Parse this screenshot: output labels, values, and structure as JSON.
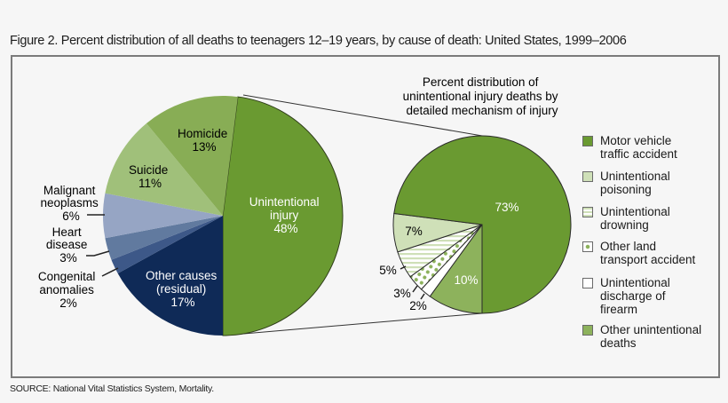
{
  "figure": {
    "title": "Figure 2. Percent distribution of all deaths to teenagers 12–19 years, by cause of death: United States, 1999–2006",
    "source": "SOURCE: National Vital Statistics System, Mortality."
  },
  "main_pie": {
    "slices": [
      {
        "label": "Unintentional injury",
        "pct": "48%",
        "color": "#6a9a31"
      },
      {
        "label": "Other causes (residual)",
        "pct": "17%",
        "color": "#0f2a57"
      },
      {
        "label": "Congenital anomalies",
        "pct": "2%",
        "color": "#3d5888"
      },
      {
        "label": "Heart disease",
        "pct": "3%",
        "color": "#617a9f"
      },
      {
        "label": "Malignant neoplasms",
        "pct": "6%",
        "color": "#96a5c4"
      },
      {
        "label": "Suicide",
        "pct": "11%",
        "color": "#a0c07a"
      },
      {
        "label": "Homicide",
        "pct": "13%",
        "color": "#88ad55"
      }
    ]
  },
  "detail_pie": {
    "title": "Percent distribution of\nunintentional injury deaths by\ndetailed mechanism of injury",
    "title_lines": [
      "Percent distribution of",
      "unintentional injury deaths by",
      "detailed mechanism of injury"
    ],
    "slices": [
      {
        "label": "Motor vehicle traffic accident",
        "pct": "73%",
        "color": "#6a9a31"
      },
      {
        "label": "Unintentional poisoning",
        "pct": "7%",
        "color": "#cfe0b8"
      },
      {
        "label": "Unintentional drowning",
        "pct": "5%",
        "color": "#e4eed6"
      },
      {
        "label": "Other land transport accident",
        "pct": "3%",
        "color": "#f2f6ea"
      },
      {
        "label": "Unintentional discharge of firearm",
        "pct": "2%",
        "color": "#ffffff"
      },
      {
        "label": "Other unintentional deaths",
        "pct": "10%",
        "color": "#8db25c"
      }
    ]
  },
  "legend": {
    "items": [
      {
        "text": "Motor vehicle\ntraffic accident",
        "color": "#6a9a31",
        "pattern": "solid"
      },
      {
        "text": "Unintentional\npoisoning",
        "color": "#cfe0b8",
        "pattern": "solid"
      },
      {
        "text": "Unintentional\ndrowning",
        "color": "#e4eed6",
        "pattern": "horizontal-stripes"
      },
      {
        "text": "Other land\ntransport accident",
        "color": "#f2f6ea",
        "pattern": "dots"
      },
      {
        "text": "Unintentional\ndischarge of\nfirearm",
        "color": "#ffffff",
        "pattern": "solid"
      },
      {
        "text": "Other unintentional\ndeaths",
        "color": "#8db25c",
        "pattern": "solid"
      }
    ]
  },
  "labels": {
    "homicide": [
      "Homicide",
      "13%"
    ],
    "suicide": [
      "Suicide",
      "11%"
    ],
    "malignant": [
      "Malignant",
      "neoplasms",
      "6%"
    ],
    "heart": [
      "Heart",
      "disease",
      "3%"
    ],
    "congenital": [
      "Congenital",
      "anomalies",
      "2%"
    ],
    "other": [
      "Other causes",
      "(residual)",
      "17%"
    ],
    "unintentional": [
      "Unintentional",
      "injury",
      "48%"
    ],
    "motor": "73%",
    "poisoning": "7%",
    "drowning": "5%",
    "otherland": "3%",
    "firearm": "2%",
    "otherunint": "10%"
  },
  "chart_data": [
    {
      "type": "pie",
      "title": "Percent distribution of all deaths to teenagers 12–19 years, by cause of death: United States, 1999–2006",
      "categories": [
        "Unintentional injury",
        "Other causes (residual)",
        "Congenital anomalies",
        "Heart disease",
        "Malignant neoplasms",
        "Suicide",
        "Homicide"
      ],
      "values": [
        48,
        17,
        2,
        3,
        6,
        11,
        13
      ],
      "unit": "%"
    },
    {
      "type": "pie",
      "title": "Percent distribution of unintentional injury deaths by detailed mechanism of injury",
      "categories": [
        "Motor vehicle traffic accident",
        "Unintentional poisoning",
        "Unintentional drowning",
        "Other land transport accident",
        "Unintentional discharge of firearm",
        "Other unintentional deaths"
      ],
      "values": [
        73,
        7,
        5,
        3,
        2,
        10
      ],
      "unit": "%",
      "legend_position": "right"
    }
  ]
}
